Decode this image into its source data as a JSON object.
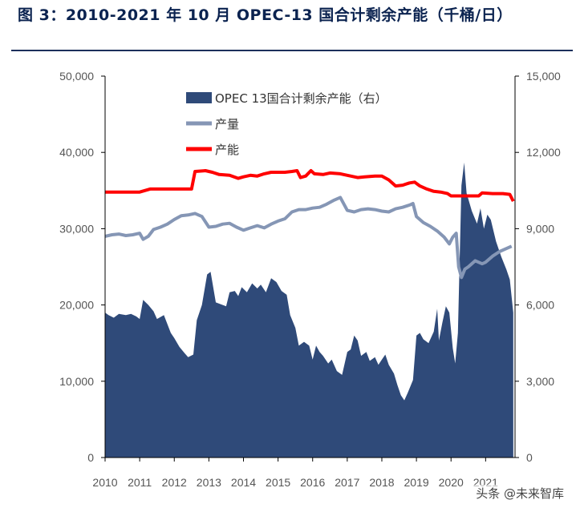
{
  "title": "图 3：2010-2021 年 10 月 OPEC-13 国合计剩余产能（千桶/日）",
  "watermark": "头条 @未来智库",
  "chart_data": {
    "type": "line",
    "title": "图 3：2010-2021 年 10 月 OPEC-13 国合计剩余产能（千桶/日）",
    "x_tick_labels": [
      "2010",
      "2011",
      "2012",
      "2013",
      "2014",
      "2015",
      "2016",
      "2017",
      "2018",
      "2019",
      "2020",
      "2021"
    ],
    "x_range": [
      2010,
      2021.85
    ],
    "y_left": {
      "range": [
        0,
        50000
      ],
      "ticks": [
        "0",
        "10,000",
        "20,000",
        "30,000",
        "40,000",
        "50,000"
      ],
      "tick_values": [
        0,
        10000,
        20000,
        30000,
        40000,
        50000
      ]
    },
    "y_right": {
      "range": [
        0,
        15000
      ],
      "ticks": [
        "0",
        "3,000",
        "6,000",
        "9,000",
        "12,000",
        "15,000"
      ],
      "tick_values": [
        0,
        3000,
        6000,
        9000,
        12000,
        15000
      ]
    },
    "legend_position": "top-left",
    "series": [
      {
        "name": "OPEC 13国合计剩余产能（右）",
        "kind": "area",
        "axis": "right",
        "color": "#2f4a79",
        "points": [
          [
            2010.0,
            5700
          ],
          [
            2010.1,
            5600
          ],
          [
            2010.25,
            5500
          ],
          [
            2010.4,
            5650
          ],
          [
            2010.6,
            5600
          ],
          [
            2010.75,
            5650
          ],
          [
            2010.9,
            5550
          ],
          [
            2011.0,
            5450
          ],
          [
            2011.1,
            6200
          ],
          [
            2011.25,
            6000
          ],
          [
            2011.4,
            5750
          ],
          [
            2011.5,
            5450
          ],
          [
            2011.7,
            5600
          ],
          [
            2011.9,
            4900
          ],
          [
            2012.0,
            4700
          ],
          [
            2012.15,
            4350
          ],
          [
            2012.3,
            4100
          ],
          [
            2012.4,
            3950
          ],
          [
            2012.55,
            4050
          ],
          [
            2012.65,
            5400
          ],
          [
            2012.8,
            6000
          ],
          [
            2012.95,
            7200
          ],
          [
            2013.05,
            7300
          ],
          [
            2013.2,
            6100
          ],
          [
            2013.4,
            6000
          ],
          [
            2013.5,
            5950
          ],
          [
            2013.6,
            6500
          ],
          [
            2013.75,
            6550
          ],
          [
            2013.85,
            6350
          ],
          [
            2013.95,
            6700
          ],
          [
            2014.1,
            6500
          ],
          [
            2014.25,
            6850
          ],
          [
            2014.4,
            6650
          ],
          [
            2014.5,
            6800
          ],
          [
            2014.65,
            6500
          ],
          [
            2014.8,
            7050
          ],
          [
            2014.95,
            6900
          ],
          [
            2015.1,
            6550
          ],
          [
            2015.25,
            6400
          ],
          [
            2015.35,
            5600
          ],
          [
            2015.5,
            5100
          ],
          [
            2015.6,
            4400
          ],
          [
            2015.75,
            4550
          ],
          [
            2015.9,
            4400
          ],
          [
            2016.0,
            3850
          ],
          [
            2016.1,
            4400
          ],
          [
            2016.2,
            4150
          ],
          [
            2016.3,
            4000
          ],
          [
            2016.45,
            3700
          ],
          [
            2016.55,
            3850
          ],
          [
            2016.7,
            3400
          ],
          [
            2016.85,
            3250
          ],
          [
            2017.0,
            4150
          ],
          [
            2017.1,
            4250
          ],
          [
            2017.2,
            4800
          ],
          [
            2017.3,
            4600
          ],
          [
            2017.4,
            4000
          ],
          [
            2017.55,
            4150
          ],
          [
            2017.65,
            3800
          ],
          [
            2017.8,
            3950
          ],
          [
            2017.9,
            3650
          ],
          [
            2018.0,
            3850
          ],
          [
            2018.1,
            4050
          ],
          [
            2018.2,
            3650
          ],
          [
            2018.35,
            3300
          ],
          [
            2018.45,
            2850
          ],
          [
            2018.55,
            2450
          ],
          [
            2018.65,
            2250
          ],
          [
            2018.75,
            2550
          ],
          [
            2018.9,
            3050
          ],
          [
            2019.0,
            4800
          ],
          [
            2019.1,
            4900
          ],
          [
            2019.2,
            4650
          ],
          [
            2019.35,
            4500
          ],
          [
            2019.5,
            4950
          ],
          [
            2019.6,
            5850
          ],
          [
            2019.65,
            4600
          ],
          [
            2019.75,
            5300
          ],
          [
            2019.85,
            5950
          ],
          [
            2019.95,
            5700
          ],
          [
            2020.05,
            4300
          ],
          [
            2020.12,
            3700
          ],
          [
            2020.2,
            4900
          ],
          [
            2020.3,
            10700
          ],
          [
            2020.38,
            11600
          ],
          [
            2020.45,
            10400
          ],
          [
            2020.6,
            9700
          ],
          [
            2020.75,
            9200
          ],
          [
            2020.85,
            9800
          ],
          [
            2020.95,
            9000
          ],
          [
            2021.05,
            9550
          ],
          [
            2021.15,
            9350
          ],
          [
            2021.3,
            8500
          ],
          [
            2021.45,
            7900
          ],
          [
            2021.6,
            7400
          ],
          [
            2021.7,
            7000
          ],
          [
            2021.8,
            5700
          ]
        ]
      },
      {
        "name": "产量",
        "kind": "line",
        "axis": "left",
        "color": "#8596b5",
        "points": [
          [
            2010.0,
            29000
          ],
          [
            2010.2,
            29200
          ],
          [
            2010.4,
            29300
          ],
          [
            2010.6,
            29100
          ],
          [
            2010.8,
            29200
          ],
          [
            2011.0,
            29400
          ],
          [
            2011.1,
            28600
          ],
          [
            2011.25,
            29000
          ],
          [
            2011.4,
            29900
          ],
          [
            2011.6,
            30200
          ],
          [
            2011.8,
            30600
          ],
          [
            2012.0,
            31200
          ],
          [
            2012.2,
            31700
          ],
          [
            2012.4,
            31800
          ],
          [
            2012.6,
            32000
          ],
          [
            2012.8,
            31600
          ],
          [
            2013.0,
            30200
          ],
          [
            2013.2,
            30300
          ],
          [
            2013.4,
            30600
          ],
          [
            2013.6,
            30700
          ],
          [
            2013.8,
            30200
          ],
          [
            2014.0,
            29800
          ],
          [
            2014.2,
            30100
          ],
          [
            2014.4,
            30400
          ],
          [
            2014.6,
            30100
          ],
          [
            2014.8,
            30600
          ],
          [
            2015.0,
            31000
          ],
          [
            2015.2,
            31300
          ],
          [
            2015.4,
            32200
          ],
          [
            2015.6,
            32500
          ],
          [
            2015.8,
            32500
          ],
          [
            2016.0,
            32700
          ],
          [
            2016.2,
            32800
          ],
          [
            2016.4,
            33200
          ],
          [
            2016.6,
            33700
          ],
          [
            2016.8,
            34100
          ],
          [
            2017.0,
            32400
          ],
          [
            2017.2,
            32200
          ],
          [
            2017.4,
            32500
          ],
          [
            2017.6,
            32600
          ],
          [
            2017.8,
            32500
          ],
          [
            2018.0,
            32300
          ],
          [
            2018.2,
            32200
          ],
          [
            2018.4,
            32600
          ],
          [
            2018.6,
            32800
          ],
          [
            2018.8,
            33100
          ],
          [
            2018.9,
            33300
          ],
          [
            2019.0,
            31600
          ],
          [
            2019.2,
            30800
          ],
          [
            2019.4,
            30300
          ],
          [
            2019.6,
            29700
          ],
          [
            2019.8,
            28900
          ],
          [
            2019.95,
            28000
          ],
          [
            2020.05,
            28900
          ],
          [
            2020.15,
            29400
          ],
          [
            2020.22,
            25000
          ],
          [
            2020.3,
            23600
          ],
          [
            2020.4,
            24700
          ],
          [
            2020.5,
            25000
          ],
          [
            2020.7,
            25800
          ],
          [
            2020.9,
            25400
          ],
          [
            2021.0,
            25600
          ],
          [
            2021.2,
            26400
          ],
          [
            2021.4,
            27000
          ],
          [
            2021.6,
            27400
          ],
          [
            2021.75,
            27700
          ]
        ]
      },
      {
        "name": "产能",
        "kind": "line",
        "axis": "left",
        "color": "#ff0000",
        "points": [
          [
            2010.0,
            34800
          ],
          [
            2010.5,
            34800
          ],
          [
            2011.0,
            34800
          ],
          [
            2011.3,
            35200
          ],
          [
            2011.6,
            35200
          ],
          [
            2012.0,
            35200
          ],
          [
            2012.5,
            35200
          ],
          [
            2012.6,
            37500
          ],
          [
            2012.9,
            37600
          ],
          [
            2013.1,
            37400
          ],
          [
            2013.3,
            37100
          ],
          [
            2013.6,
            37000
          ],
          [
            2013.85,
            36600
          ],
          [
            2014.0,
            36800
          ],
          [
            2014.2,
            37000
          ],
          [
            2014.4,
            36900
          ],
          [
            2014.6,
            37200
          ],
          [
            2014.8,
            37400
          ],
          [
            2015.0,
            37400
          ],
          [
            2015.2,
            37400
          ],
          [
            2015.4,
            37500
          ],
          [
            2015.55,
            37600
          ],
          [
            2015.65,
            36700
          ],
          [
            2015.8,
            36900
          ],
          [
            2015.95,
            37600
          ],
          [
            2016.05,
            37200
          ],
          [
            2016.3,
            37100
          ],
          [
            2016.5,
            37300
          ],
          [
            2016.8,
            37200
          ],
          [
            2017.0,
            37000
          ],
          [
            2017.3,
            36700
          ],
          [
            2017.5,
            36800
          ],
          [
            2017.8,
            36900
          ],
          [
            2018.0,
            36900
          ],
          [
            2018.2,
            36400
          ],
          [
            2018.4,
            35600
          ],
          [
            2018.6,
            35700
          ],
          [
            2018.8,
            36000
          ],
          [
            2018.95,
            36100
          ],
          [
            2019.1,
            35600
          ],
          [
            2019.3,
            35200
          ],
          [
            2019.5,
            34900
          ],
          [
            2019.7,
            34800
          ],
          [
            2019.9,
            34600
          ],
          [
            2020.0,
            34300
          ],
          [
            2020.3,
            34300
          ],
          [
            2020.5,
            34300
          ],
          [
            2020.8,
            34300
          ],
          [
            2020.9,
            34700
          ],
          [
            2021.2,
            34600
          ],
          [
            2021.5,
            34600
          ],
          [
            2021.7,
            34500
          ],
          [
            2021.8,
            33600
          ]
        ]
      }
    ]
  }
}
